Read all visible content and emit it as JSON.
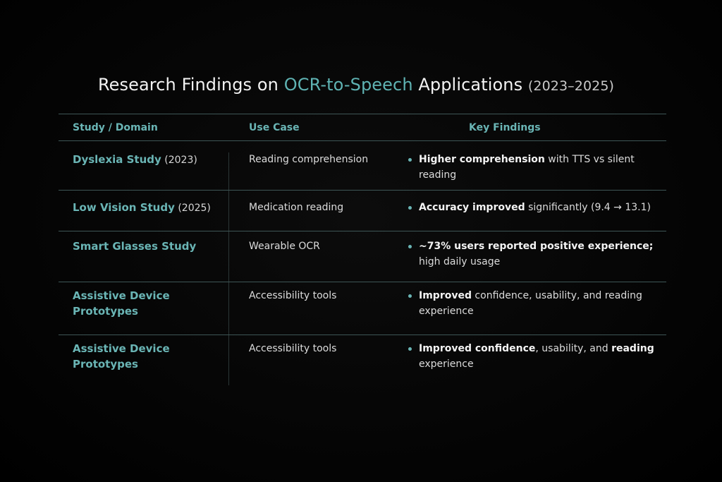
{
  "title": {
    "pre": "Research Findings on ",
    "accent": "OCR-to-Speech",
    "post": " Applications ",
    "years": "(2023–2025)"
  },
  "headers": {
    "study": "Study / Domain",
    "use_case": "Use Case",
    "findings": "Key Findings"
  },
  "rows": [
    {
      "study": "Dyslexia Study",
      "year": " (2023)",
      "use_case": "Reading comprehension",
      "f1": "Higher comprehension",
      "f2": " with TTS vs silent reading"
    },
    {
      "study": "Low Vision Study",
      "year": " (2025)",
      "use_case": "Medication reading",
      "f1": "Accuracy improved",
      "f2": " significantly (9.4 → 13.1)"
    },
    {
      "study": "Smart Glasses Study",
      "year": "",
      "use_case": "Wearable OCR",
      "f1": "~73% users reported positive experience;",
      "f2": " high daily usage"
    },
    {
      "study": "Assistive Device Prototypes",
      "year": "",
      "use_case": "Accessibility tools",
      "f1": "Improved",
      "f2": " confidence, usability, and reading experience"
    },
    {
      "study": "Assistive Device Prototypes",
      "year": "",
      "use_case": "Accessibility tools",
      "f1": "Improved confidence",
      "f2": ", usability, and ",
      "f3": "reading",
      "f4": " experience"
    }
  ],
  "colors": {
    "accent": "#6ab5b5",
    "background": "#000000",
    "rule": "#3e5656"
  }
}
